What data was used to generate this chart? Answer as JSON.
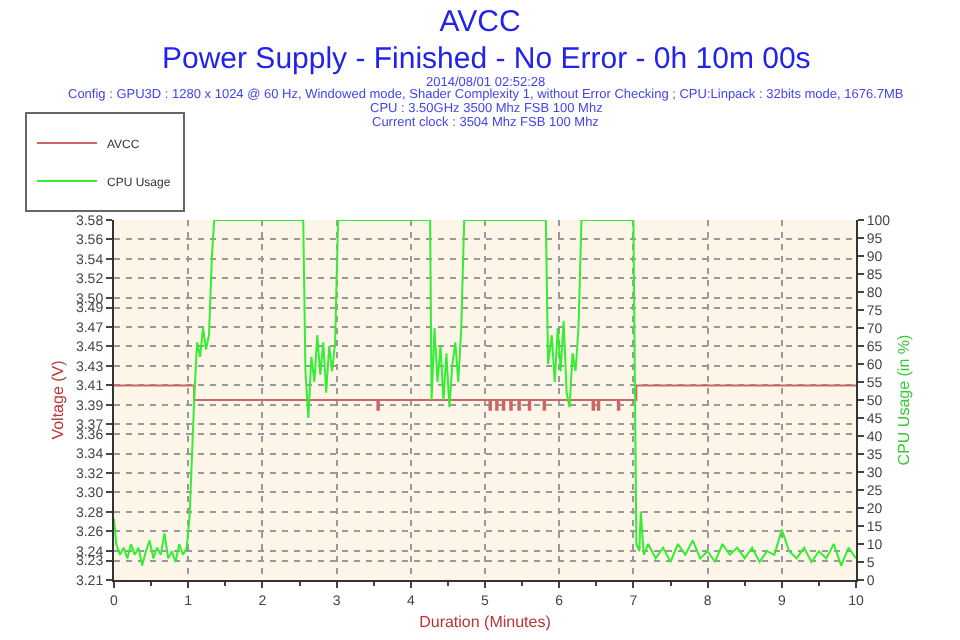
{
  "chart_data": {
    "type": "line",
    "title": "AVCC",
    "subtitle": "Power Supply - Finished - No Error - 0h 10m 00s",
    "annotations": [
      "2014/08/01 02:52:28",
      "Config : GPU3D : 1280 x 1024 @ 60 Hz, Windowed mode, Shader Complexity 1, without Error Checking ; CPU:Linpack : 32bits mode, 1676.7MB",
      "CPU : 3.50GHz 3500 Mhz FSB 100 Mhz",
      "Current clock : 3504 Mhz FSB 100 Mhz"
    ],
    "xlabel": "Duration (Minutes)",
    "ylabel": "Voltage (V)",
    "y2label": "CPU Usage (in %)",
    "xlim": [
      0,
      10
    ],
    "xticks": [
      0,
      1,
      2,
      3,
      4,
      5,
      6,
      7,
      8,
      9,
      10
    ],
    "ylim": [
      3.21,
      3.58
    ],
    "yticks": [
      3.21,
      3.23,
      3.24,
      3.26,
      3.28,
      {
        "value": 3.3,
        "label": "3.30"
      },
      3.32,
      3.34,
      3.36,
      3.37,
      3.39,
      3.41,
      3.43,
      3.45,
      3.47,
      3.49,
      {
        "value": 3.5,
        "label": "3.50"
      },
      3.52,
      3.54,
      3.56,
      3.58
    ],
    "y2lim": [
      0,
      100
    ],
    "y2ticks": [
      0,
      5,
      10,
      15,
      20,
      25,
      30,
      35,
      40,
      45,
      50,
      55,
      60,
      65,
      70,
      75,
      80,
      85,
      90,
      95,
      100
    ],
    "grid": true,
    "legend": "top left",
    "marker": "none",
    "line_style": "solid",
    "series": [
      {
        "name": "AVCC",
        "type": "step",
        "color": "#cc6666",
        "x": [
          0,
          1.08,
          3.55,
          3.57,
          5.06,
          5.08,
          5.15,
          5.17,
          5.24,
          5.26,
          5.34,
          5.36,
          5.45,
          5.47,
          5.59,
          5.61,
          5.79,
          5.81,
          6.45,
          6.47,
          6.52,
          6.54,
          6.79,
          6.81,
          7.04,
          10
        ],
        "values": [
          3.41,
          3.395,
          3.385,
          3.395,
          3.385,
          3.395,
          3.385,
          3.395,
          3.385,
          3.395,
          3.385,
          3.395,
          3.385,
          3.395,
          3.385,
          3.395,
          3.385,
          3.395,
          3.385,
          3.395,
          3.385,
          3.395,
          3.385,
          3.395,
          3.41,
          3.41
        ]
      },
      {
        "name": "CPU Usage",
        "axis": "y2",
        "color": "#33ee33",
        "x": [
          0,
          0.03,
          0.08,
          0.13,
          0.18,
          0.23,
          0.28,
          0.33,
          0.38,
          0.43,
          0.48,
          0.53,
          0.58,
          0.63,
          0.68,
          0.73,
          0.78,
          0.83,
          0.88,
          0.93,
          0.98,
          1.02,
          1.08,
          1.12,
          1.16,
          1.2,
          1.24,
          1.28,
          1.32,
          1.35,
          2.55,
          2.58,
          2.62,
          2.66,
          2.7,
          2.74,
          2.78,
          2.82,
          2.86,
          2.9,
          2.94,
          2.98,
          3.02,
          4.26,
          4.28,
          4.32,
          4.36,
          4.4,
          4.44,
          4.48,
          4.52,
          4.56,
          4.6,
          4.64,
          4.68,
          4.72,
          5.82,
          5.85,
          5.9,
          5.94,
          5.98,
          6.02,
          6.06,
          6.1,
          6.14,
          6.18,
          6.22,
          6.26,
          6.3,
          7.0,
          7.04,
          7.08,
          7.1,
          7.14,
          7.2,
          7.3,
          7.4,
          7.5,
          7.6,
          7.7,
          7.8,
          7.9,
          8.0,
          8.1,
          8.2,
          8.3,
          8.4,
          8.5,
          8.6,
          8.7,
          8.8,
          8.9,
          9.0,
          9.1,
          9.2,
          9.3,
          9.4,
          9.5,
          9.6,
          9.7,
          9.8,
          9.9,
          10
        ],
        "values": [
          17,
          10,
          7,
          9,
          6,
          10,
          7,
          9,
          4,
          8,
          11,
          6,
          9,
          7,
          13,
          6,
          8,
          5,
          10,
          7,
          9,
          18,
          50,
          66,
          62,
          70,
          64,
          68,
          90,
          100,
          100,
          58,
          45,
          62,
          55,
          68,
          57,
          66,
          52,
          65,
          58,
          66,
          100,
          100,
          50,
          70,
          55,
          65,
          50,
          63,
          48,
          60,
          66,
          55,
          70,
          100,
          100,
          60,
          68,
          55,
          70,
          58,
          72,
          52,
          48,
          63,
          58,
          70,
          100,
          100,
          10,
          8,
          19,
          7,
          10,
          6,
          9,
          5,
          10,
          7,
          11,
          6,
          8,
          5,
          10,
          7,
          9,
          6,
          9,
          5,
          8,
          7,
          14,
          8,
          6,
          9,
          5,
          8,
          6,
          10,
          4,
          9,
          6
        ]
      }
    ]
  }
}
